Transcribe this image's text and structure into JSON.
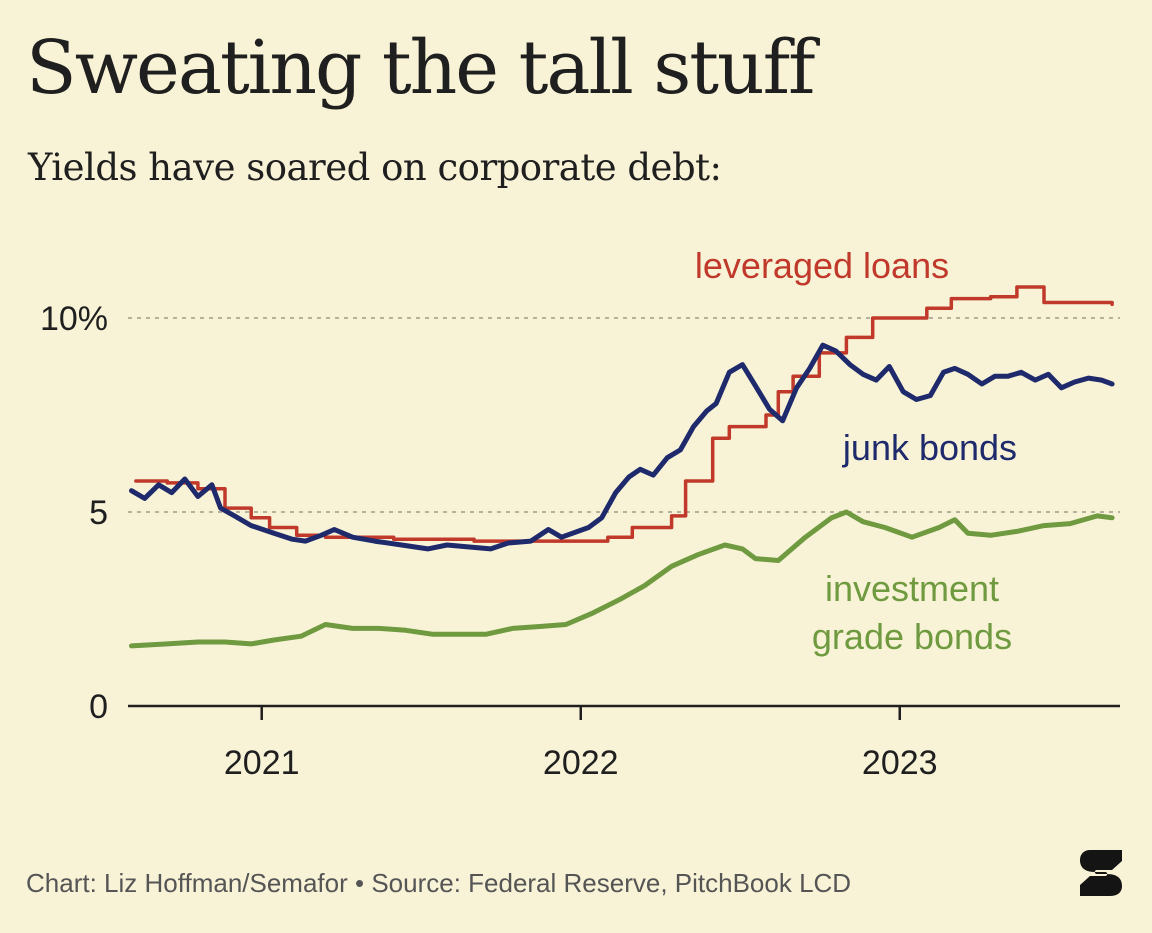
{
  "title": "Sweating the tall stuff",
  "subtitle": "Yields have soared on corporate debt:",
  "footer": "Chart: Liz Hoffman/Semafor • Source: Federal Reserve, PitchBook LCD",
  "chart_data": {
    "type": "line",
    "title": "Sweating the tall stuff",
    "subtitle": "Yields have soared on corporate debt:",
    "xlabel": "",
    "ylabel": "",
    "xlim": [
      "2020-08-01",
      "2023-09-10"
    ],
    "ylim": [
      0,
      10
    ],
    "x_ticks": [
      {
        "date": "2021-01-01",
        "label": "2021"
      },
      {
        "date": "2022-01-01",
        "label": "2022"
      },
      {
        "date": "2023-01-01",
        "label": "2023"
      }
    ],
    "y_ticks": [
      {
        "value": 0,
        "label": "0"
      },
      {
        "value": 5,
        "label": "5"
      },
      {
        "value": 10,
        "label": "10%"
      }
    ],
    "grid": "dotted horizontal at 5 and 10",
    "legend": "inline labels",
    "colors": {
      "background": "#f8f3d7",
      "leveraged_loans": "#c0392b",
      "junk_bonds": "#1e2a6b",
      "investment_grade": "#6f9a3f",
      "grid": "#b4b29c",
      "text": "#1f1f1f"
    },
    "series": [
      {
        "name": "leveraged loans",
        "color": "#c0392b",
        "step": true,
        "points": [
          [
            "2020-08-10",
            5.8
          ],
          [
            "2020-09-15",
            5.75
          ],
          [
            "2020-10-20",
            5.6
          ],
          [
            "2020-11-20",
            5.1
          ],
          [
            "2020-12-20",
            4.85
          ],
          [
            "2021-01-10",
            4.6
          ],
          [
            "2021-02-10",
            4.4
          ],
          [
            "2021-03-15",
            4.35
          ],
          [
            "2021-06-01",
            4.3
          ],
          [
            "2021-09-01",
            4.25
          ],
          [
            "2021-12-01",
            4.25
          ],
          [
            "2022-02-01",
            4.35
          ],
          [
            "2022-03-01",
            4.6
          ],
          [
            "2022-04-15",
            4.9
          ],
          [
            "2022-05-01",
            5.8
          ],
          [
            "2022-06-01",
            6.9
          ],
          [
            "2022-06-20",
            7.2
          ],
          [
            "2022-08-01",
            7.5
          ],
          [
            "2022-08-15",
            8.1
          ],
          [
            "2022-09-01",
            8.5
          ],
          [
            "2022-10-01",
            9.1
          ],
          [
            "2022-11-01",
            9.5
          ],
          [
            "2022-12-01",
            10.0
          ],
          [
            "2023-02-01",
            10.25
          ],
          [
            "2023-03-01",
            10.5
          ],
          [
            "2023-04-15",
            10.55
          ],
          [
            "2023-05-15",
            10.8
          ],
          [
            "2023-06-15",
            10.4
          ],
          [
            "2023-09-01",
            10.35
          ]
        ]
      },
      {
        "name": "junk bonds",
        "color": "#1e2a6b",
        "points": [
          [
            "2020-08-05",
            5.55
          ],
          [
            "2020-08-20",
            5.35
          ],
          [
            "2020-09-05",
            5.7
          ],
          [
            "2020-09-20",
            5.5
          ],
          [
            "2020-10-05",
            5.85
          ],
          [
            "2020-10-20",
            5.4
          ],
          [
            "2020-11-05",
            5.7
          ],
          [
            "2020-11-15",
            5.1
          ],
          [
            "2020-12-01",
            4.9
          ],
          [
            "2020-12-20",
            4.65
          ],
          [
            "2021-01-15",
            4.45
          ],
          [
            "2021-02-05",
            4.3
          ],
          [
            "2021-02-20",
            4.25
          ],
          [
            "2021-03-10",
            4.4
          ],
          [
            "2021-03-25",
            4.55
          ],
          [
            "2021-04-15",
            4.35
          ],
          [
            "2021-05-10",
            4.25
          ],
          [
            "2021-06-10",
            4.15
          ],
          [
            "2021-07-10",
            4.05
          ],
          [
            "2021-08-01",
            4.15
          ],
          [
            "2021-08-25",
            4.1
          ],
          [
            "2021-09-20",
            4.05
          ],
          [
            "2021-10-10",
            4.2
          ],
          [
            "2021-11-05",
            4.25
          ],
          [
            "2021-11-25",
            4.55
          ],
          [
            "2021-12-10",
            4.35
          ],
          [
            "2022-01-10",
            4.6
          ],
          [
            "2022-01-25",
            4.85
          ],
          [
            "2022-02-10",
            5.5
          ],
          [
            "2022-02-25",
            5.9
          ],
          [
            "2022-03-10",
            6.1
          ],
          [
            "2022-03-25",
            5.95
          ],
          [
            "2022-04-10",
            6.4
          ],
          [
            "2022-04-25",
            6.6
          ],
          [
            "2022-05-10",
            7.2
          ],
          [
            "2022-05-25",
            7.6
          ],
          [
            "2022-06-05",
            7.8
          ],
          [
            "2022-06-20",
            8.6
          ],
          [
            "2022-07-05",
            8.8
          ],
          [
            "2022-07-20",
            8.25
          ],
          [
            "2022-08-05",
            7.65
          ],
          [
            "2022-08-20",
            7.35
          ],
          [
            "2022-09-05",
            8.2
          ],
          [
            "2022-09-20",
            8.7
          ],
          [
            "2022-10-05",
            9.3
          ],
          [
            "2022-10-20",
            9.15
          ],
          [
            "2022-11-05",
            8.8
          ],
          [
            "2022-11-20",
            8.55
          ],
          [
            "2022-12-05",
            8.4
          ],
          [
            "2022-12-20",
            8.75
          ],
          [
            "2023-01-05",
            8.1
          ],
          [
            "2023-01-20",
            7.9
          ],
          [
            "2023-02-05",
            8.0
          ],
          [
            "2023-02-20",
            8.6
          ],
          [
            "2023-03-05",
            8.7
          ],
          [
            "2023-03-20",
            8.55
          ],
          [
            "2023-04-05",
            8.3
          ],
          [
            "2023-04-20",
            8.5
          ],
          [
            "2023-05-05",
            8.5
          ],
          [
            "2023-05-20",
            8.6
          ],
          [
            "2023-06-05",
            8.4
          ],
          [
            "2023-06-20",
            8.55
          ],
          [
            "2023-07-05",
            8.2
          ],
          [
            "2023-07-20",
            8.35
          ],
          [
            "2023-08-05",
            8.45
          ],
          [
            "2023-08-20",
            8.4
          ],
          [
            "2023-09-01",
            8.3
          ]
        ]
      },
      {
        "name": "investment grade bonds",
        "color": "#6f9a3f",
        "points": [
          [
            "2020-08-05",
            1.55
          ],
          [
            "2020-09-15",
            1.6
          ],
          [
            "2020-10-20",
            1.65
          ],
          [
            "2020-11-20",
            1.65
          ],
          [
            "2020-12-20",
            1.6
          ],
          [
            "2021-01-15",
            1.7
          ],
          [
            "2021-02-15",
            1.8
          ],
          [
            "2021-03-15",
            2.1
          ],
          [
            "2021-04-15",
            2.0
          ],
          [
            "2021-05-15",
            2.0
          ],
          [
            "2021-06-15",
            1.95
          ],
          [
            "2021-07-15",
            1.85
          ],
          [
            "2021-08-15",
            1.85
          ],
          [
            "2021-09-15",
            1.85
          ],
          [
            "2021-10-15",
            2.0
          ],
          [
            "2021-11-15",
            2.05
          ],
          [
            "2021-12-15",
            2.1
          ],
          [
            "2022-01-15",
            2.4
          ],
          [
            "2022-02-15",
            2.75
          ],
          [
            "2022-03-15",
            3.1
          ],
          [
            "2022-04-15",
            3.6
          ],
          [
            "2022-05-15",
            3.9
          ],
          [
            "2022-06-15",
            4.15
          ],
          [
            "2022-07-05",
            4.05
          ],
          [
            "2022-07-20",
            3.8
          ],
          [
            "2022-08-15",
            3.75
          ],
          [
            "2022-09-15",
            4.35
          ],
          [
            "2022-10-15",
            4.85
          ],
          [
            "2022-11-01",
            5.0
          ],
          [
            "2022-11-20",
            4.75
          ],
          [
            "2022-12-15",
            4.6
          ],
          [
            "2023-01-15",
            4.35
          ],
          [
            "2023-02-15",
            4.6
          ],
          [
            "2023-03-05",
            4.8
          ],
          [
            "2023-03-20",
            4.45
          ],
          [
            "2023-04-15",
            4.4
          ],
          [
            "2023-05-15",
            4.5
          ],
          [
            "2023-06-15",
            4.65
          ],
          [
            "2023-07-15",
            4.7
          ],
          [
            "2023-08-15",
            4.9
          ],
          [
            "2023-09-01",
            4.85
          ]
        ]
      }
    ],
    "labels": [
      {
        "series": "leveraged loans",
        "lines": [
          "leveraged loans"
        ]
      },
      {
        "series": "junk bonds",
        "lines": [
          "junk bonds"
        ]
      },
      {
        "series": "investment grade bonds",
        "lines": [
          "investment",
          "grade bonds"
        ]
      }
    ]
  }
}
